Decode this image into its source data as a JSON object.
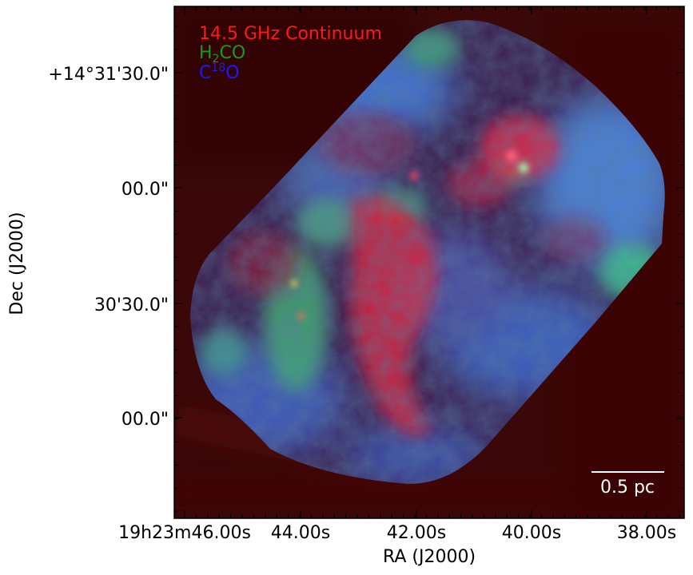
{
  "figure": {
    "legend": [
      {
        "text": "14.5 GHz Continuum",
        "color": "#ff1a1a"
      },
      {
        "text": "H",
        "sub": "2",
        "rest": "CO",
        "color": "#1a9c1a"
      },
      {
        "text": "C",
        "sup": "18",
        "rest": "O",
        "color": "#1a1aff"
      }
    ],
    "scale_bar_label": "0.5 pc",
    "x_axis": {
      "title": "RA (J2000)",
      "ticks": [
        "19h23m46.00s",
        "44.00s",
        "42.00s",
        "40.00s",
        "38.00s"
      ]
    },
    "y_axis": {
      "title": "Dec (J2000)",
      "ticks": [
        "+14°31'30.0\"",
        "00.0\"",
        "30'30.0\"",
        "00.0\""
      ]
    },
    "background_color": "#3a0808",
    "channel_colors": {
      "red": "#ff2020",
      "green": "#20e060",
      "blue": "#2050ff"
    }
  }
}
